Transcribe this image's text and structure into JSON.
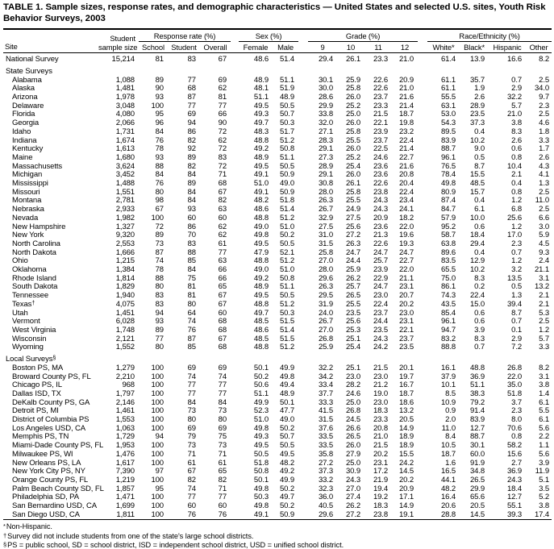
{
  "title": "TABLE 1. Sample sizes, response rates, and demographic characteristics — United States and selected U.S. sites, Youth Risk Behavior Surveys, 2003",
  "header": {
    "site": "Site",
    "sample_size": [
      "Student",
      "sample size"
    ],
    "groups": {
      "response": {
        "label": "Response rate (%)",
        "cols": [
          "School",
          "Student",
          "Overall"
        ]
      },
      "sex": {
        "label": "Sex (%)",
        "cols": [
          "Female",
          "Male"
        ]
      },
      "grade": {
        "label": "Grade (%)",
        "cols": [
          "9",
          "10",
          "11",
          "12"
        ]
      },
      "race": {
        "label": "Race/Ethnicity (%)",
        "cols": [
          "White*",
          "Black*",
          "Hispanic",
          "Other"
        ]
      }
    }
  },
  "rows": [
    {
      "type": "data",
      "label": "National Survey",
      "indent": false,
      "values": [
        "15,214",
        "81",
        "83",
        "67",
        "48.6",
        "51.4",
        "29.4",
        "26.1",
        "23.3",
        "21.0",
        "61.4",
        "13.9",
        "16.6",
        "8.2"
      ]
    },
    {
      "type": "section",
      "label": "State Surveys"
    },
    {
      "type": "data",
      "label": "Alabama",
      "indent": true,
      "values": [
        "1,088",
        "89",
        "77",
        "69",
        "48.9",
        "51.1",
        "30.1",
        "25.9",
        "22.6",
        "20.9",
        "61.1",
        "35.7",
        "0.7",
        "2.5"
      ]
    },
    {
      "type": "data",
      "label": "Alaska",
      "indent": true,
      "values": [
        "1,481",
        "90",
        "68",
        "62",
        "48.1",
        "51.9",
        "30.0",
        "25.8",
        "22.6",
        "21.0",
        "61.1",
        "1.9",
        "2.9",
        "34.0"
      ]
    },
    {
      "type": "data",
      "label": "Arizona",
      "indent": true,
      "values": [
        "1,978",
        "93",
        "87",
        "81",
        "51.1",
        "48.9",
        "28.6",
        "26.0",
        "23.7",
        "21.6",
        "55.5",
        "2.6",
        "32.2",
        "9.7"
      ]
    },
    {
      "type": "data",
      "label": "Delaware",
      "indent": true,
      "values": [
        "3,048",
        "100",
        "77",
        "77",
        "49.5",
        "50.5",
        "29.9",
        "25.2",
        "23.3",
        "21.4",
        "63.1",
        "28.9",
        "5.7",
        "2.3"
      ]
    },
    {
      "type": "data",
      "label": "Florida",
      "indent": true,
      "values": [
        "4,080",
        "95",
        "69",
        "66",
        "49.3",
        "50.7",
        "33.8",
        "25.0",
        "21.5",
        "18.7",
        "53.0",
        "23.5",
        "21.0",
        "2.5"
      ]
    },
    {
      "type": "data",
      "label": "Georgia",
      "indent": true,
      "values": [
        "2,066",
        "96",
        "94",
        "90",
        "49.7",
        "50.3",
        "32.0",
        "26.0",
        "22.1",
        "19.8",
        "54.3",
        "37.3",
        "3.8",
        "4.6"
      ]
    },
    {
      "type": "data",
      "label": "Idaho",
      "indent": true,
      "values": [
        "1,731",
        "84",
        "86",
        "72",
        "48.3",
        "51.7",
        "27.1",
        "25.8",
        "23.9",
        "23.2",
        "89.5",
        "0.4",
        "8.3",
        "1.8"
      ]
    },
    {
      "type": "data",
      "label": "Indiana",
      "indent": true,
      "values": [
        "1,674",
        "76",
        "82",
        "62",
        "48.8",
        "51.2",
        "28.3",
        "25.5",
        "23.7",
        "22.4",
        "83.9",
        "10.2",
        "2.6",
        "3.3"
      ]
    },
    {
      "type": "data",
      "label": "Kentucky",
      "indent": true,
      "values": [
        "1,613",
        "78",
        "92",
        "72",
        "49.2",
        "50.8",
        "29.1",
        "26.0",
        "22.5",
        "21.4",
        "88.7",
        "9.0",
        "0.6",
        "1.7"
      ]
    },
    {
      "type": "data",
      "label": "Maine",
      "indent": true,
      "values": [
        "1,680",
        "93",
        "89",
        "83",
        "48.9",
        "51.1",
        "27.3",
        "25.2",
        "24.6",
        "22.7",
        "96.1",
        "0.5",
        "0.8",
        "2.6"
      ]
    },
    {
      "type": "data",
      "label": "Massachusetts",
      "indent": true,
      "values": [
        "3,624",
        "88",
        "82",
        "72",
        "49.5",
        "50.5",
        "28.9",
        "25.4",
        "23.6",
        "21.6",
        "76.5",
        "8.7",
        "10.4",
        "4.3"
      ]
    },
    {
      "type": "data",
      "label": "Michigan",
      "indent": true,
      "values": [
        "3,452",
        "84",
        "84",
        "71",
        "49.1",
        "50.9",
        "29.1",
        "26.0",
        "23.6",
        "20.8",
        "78.4",
        "15.5",
        "2.1",
        "4.1"
      ]
    },
    {
      "type": "data",
      "label": "Mississippi",
      "indent": true,
      "values": [
        "1,488",
        "76",
        "89",
        "68",
        "51.0",
        "49.0",
        "30.8",
        "26.1",
        "22.6",
        "20.4",
        "49.8",
        "48.5",
        "0.4",
        "1.3"
      ]
    },
    {
      "type": "data",
      "label": "Missouri",
      "indent": true,
      "values": [
        "1,551",
        "80",
        "84",
        "67",
        "49.1",
        "50.9",
        "28.0",
        "25.8",
        "23.8",
        "22.4",
        "80.9",
        "15.7",
        "0.8",
        "2.5"
      ]
    },
    {
      "type": "data",
      "label": "Montana",
      "indent": true,
      "values": [
        "2,781",
        "98",
        "84",
        "82",
        "48.2",
        "51.8",
        "26.3",
        "25.5",
        "24.3",
        "23.4",
        "87.4",
        "0.4",
        "1.2",
        "11.0"
      ]
    },
    {
      "type": "data",
      "label": "Nebraska",
      "indent": true,
      "values": [
        "2,933",
        "67",
        "93",
        "63",
        "48.6",
        "51.4",
        "26.7",
        "24.9",
        "24.3",
        "24.1",
        "84.7",
        "6.1",
        "6.8",
        "2.5"
      ]
    },
    {
      "type": "data",
      "label": "Nevada",
      "indent": true,
      "values": [
        "1,982",
        "100",
        "60",
        "60",
        "48.8",
        "51.2",
        "32.9",
        "27.5",
        "20.9",
        "18.2",
        "57.9",
        "10.0",
        "25.6",
        "6.6"
      ]
    },
    {
      "type": "data",
      "label": "New Hampshire",
      "indent": true,
      "values": [
        "1,327",
        "72",
        "86",
        "62",
        "49.0",
        "51.0",
        "27.5",
        "25.6",
        "23.6",
        "22.0",
        "95.2",
        "0.6",
        "1.2",
        "3.0"
      ]
    },
    {
      "type": "data",
      "label": "New York",
      "indent": true,
      "values": [
        "9,320",
        "89",
        "70",
        "62",
        "49.8",
        "50.2",
        "31.0",
        "27.2",
        "21.3",
        "19.6",
        "58.7",
        "18.4",
        "17.0",
        "5.9"
      ]
    },
    {
      "type": "data",
      "label": "North Carolina",
      "indent": true,
      "values": [
        "2,553",
        "73",
        "83",
        "61",
        "49.5",
        "50.5",
        "31.5",
        "26.3",
        "22.6",
        "19.3",
        "63.8",
        "29.4",
        "2.3",
        "4.5"
      ]
    },
    {
      "type": "data",
      "label": "North Dakota",
      "indent": true,
      "values": [
        "1,666",
        "87",
        "88",
        "77",
        "47.9",
        "52.1",
        "25.8",
        "24.7",
        "24.7",
        "24.7",
        "89.6",
        "0.4",
        "0.7",
        "9.3"
      ]
    },
    {
      "type": "data",
      "label": "Ohio",
      "indent": true,
      "values": [
        "1,215",
        "74",
        "85",
        "63",
        "48.8",
        "51.2",
        "27.0",
        "24.4",
        "25.7",
        "22.7",
        "83.5",
        "12.9",
        "1.2",
        "2.4"
      ]
    },
    {
      "type": "data",
      "label": "Oklahoma",
      "indent": true,
      "values": [
        "1,384",
        "78",
        "84",
        "66",
        "49.0",
        "51.0",
        "28.0",
        "25.9",
        "23.9",
        "22.0",
        "65.5",
        "10.2",
        "3.2",
        "21.1"
      ]
    },
    {
      "type": "data",
      "label": "Rhode Island",
      "indent": true,
      "values": [
        "1,814",
        "88",
        "75",
        "66",
        "49.2",
        "50.8",
        "29.6",
        "26.2",
        "22.9",
        "21.1",
        "75.0",
        "8.3",
        "13.5",
        "3.1"
      ]
    },
    {
      "type": "data",
      "label": "South Dakota",
      "indent": true,
      "values": [
        "1,829",
        "80",
        "81",
        "65",
        "48.9",
        "51.1",
        "26.3",
        "25.7",
        "24.7",
        "23.1",
        "86.1",
        "0.2",
        "0.5",
        "13.2"
      ]
    },
    {
      "type": "data",
      "label": "Tennessee",
      "indent": true,
      "values": [
        "1,940",
        "83",
        "81",
        "67",
        "49.5",
        "50.5",
        "29.5",
        "26.5",
        "23.0",
        "20.7",
        "74.3",
        "22.4",
        "1.3",
        "2.1"
      ]
    },
    {
      "type": "data",
      "label": "Texas†",
      "indent": true,
      "values": [
        "4,075",
        "83",
        "80",
        "67",
        "48.8",
        "51.2",
        "31.9",
        "25.5",
        "22.4",
        "20.2",
        "43.5",
        "15.0",
        "39.4",
        "2.1"
      ]
    },
    {
      "type": "data",
      "label": "Utah",
      "indent": true,
      "values": [
        "1,451",
        "94",
        "64",
        "60",
        "49.7",
        "50.3",
        "24.0",
        "23.5",
        "23.7",
        "23.0",
        "85.4",
        "0.6",
        "8.7",
        "5.3"
      ]
    },
    {
      "type": "data",
      "label": "Vermont",
      "indent": true,
      "values": [
        "6,028",
        "93",
        "74",
        "68",
        "48.5",
        "51.5",
        "26.7",
        "25.6",
        "24.4",
        "23.1",
        "96.1",
        "0.6",
        "0.7",
        "2.5"
      ]
    },
    {
      "type": "data",
      "label": "West Virginia",
      "indent": true,
      "values": [
        "1,748",
        "89",
        "76",
        "68",
        "48.6",
        "51.4",
        "27.0",
        "25.3",
        "23.5",
        "22.1",
        "94.7",
        "3.9",
        "0.1",
        "1.2"
      ]
    },
    {
      "type": "data",
      "label": "Wisconsin",
      "indent": true,
      "values": [
        "2,121",
        "77",
        "87",
        "67",
        "48.5",
        "51.5",
        "26.8",
        "25.1",
        "24.3",
        "23.7",
        "83.2",
        "8.3",
        "2.9",
        "5.7"
      ]
    },
    {
      "type": "data",
      "label": "Wyoming",
      "indent": true,
      "values": [
        "1,552",
        "80",
        "85",
        "68",
        "48.8",
        "51.2",
        "25.9",
        "25.4",
        "24.2",
        "23.5",
        "88.8",
        "0.7",
        "7.2",
        "3.3"
      ]
    },
    {
      "type": "section",
      "label": "Local Surveys§"
    },
    {
      "type": "data",
      "label": "Boston PS, MA",
      "indent": true,
      "values": [
        "1,279",
        "100",
        "69",
        "69",
        "50.1",
        "49.9",
        "32.2",
        "25.1",
        "21.5",
        "20.1",
        "16.1",
        "48.8",
        "26.8",
        "8.2"
      ]
    },
    {
      "type": "data",
      "label": "Broward County PS, FL",
      "indent": true,
      "values": [
        "2,210",
        "100",
        "74",
        "74",
        "50.2",
        "49.8",
        "34.2",
        "23.0",
        "23.0",
        "19.7",
        "37.9",
        "36.9",
        "22.0",
        "3.1"
      ]
    },
    {
      "type": "data",
      "label": "Chicago PS, IL",
      "indent": true,
      "values": [
        "968",
        "100",
        "77",
        "77",
        "50.6",
        "49.4",
        "33.4",
        "28.2",
        "21.2",
        "16.7",
        "10.1",
        "51.1",
        "35.0",
        "3.8"
      ]
    },
    {
      "type": "data",
      "label": "Dallas ISD, TX",
      "indent": true,
      "values": [
        "1,797",
        "100",
        "77",
        "77",
        "51.1",
        "48.9",
        "37.7",
        "24.6",
        "19.0",
        "18.7",
        "8.5",
        "38.3",
        "51.8",
        "1.4"
      ]
    },
    {
      "type": "data",
      "label": "DeKalb County PS, GA",
      "indent": true,
      "values": [
        "2,146",
        "100",
        "84",
        "84",
        "49.9",
        "50.1",
        "33.3",
        "25.0",
        "23.0",
        "18.6",
        "10.9",
        "79.2",
        "3.7",
        "6.1"
      ]
    },
    {
      "type": "data",
      "label": "Detroit PS, MI",
      "indent": true,
      "values": [
        "1,461",
        "100",
        "73",
        "73",
        "52.3",
        "47.7",
        "41.5",
        "26.8",
        "18.3",
        "13.2",
        "0.9",
        "91.4",
        "2.3",
        "5.5"
      ]
    },
    {
      "type": "data",
      "label": "District of Columbia PS",
      "indent": true,
      "values": [
        "1,553",
        "100",
        "80",
        "80",
        "51.0",
        "49.0",
        "31.5",
        "24.5",
        "23.3",
        "20.5",
        "2.0",
        "83.9",
        "8.0",
        "6.1"
      ]
    },
    {
      "type": "data",
      "label": "Los Angeles USD, CA",
      "indent": true,
      "values": [
        "1,063",
        "100",
        "69",
        "69",
        "49.8",
        "50.2",
        "37.6",
        "26.6",
        "20.8",
        "14.9",
        "11.0",
        "12.7",
        "70.6",
        "5.6"
      ]
    },
    {
      "type": "data",
      "label": "Memphis PS, TN",
      "indent": true,
      "values": [
        "1,729",
        "94",
        "79",
        "75",
        "49.3",
        "50.7",
        "33.5",
        "26.5",
        "21.0",
        "18.9",
        "8.4",
        "88.7",
        "0.8",
        "2.2"
      ]
    },
    {
      "type": "data",
      "label": "Miami-Dade County PS, FL",
      "indent": true,
      "values": [
        "1,953",
        "100",
        "73",
        "73",
        "49.5",
        "50.5",
        "33.5",
        "26.0",
        "21.5",
        "18.9",
        "10.5",
        "30.1",
        "58.2",
        "1.1"
      ]
    },
    {
      "type": "data",
      "label": "Milwaukee PS, WI",
      "indent": true,
      "values": [
        "1,476",
        "100",
        "71",
        "71",
        "50.5",
        "49.5",
        "35.8",
        "27.9",
        "20.2",
        "15.5",
        "18.7",
        "60.0",
        "15.6",
        "5.6"
      ]
    },
    {
      "type": "data",
      "label": "New Orleans PS, LA",
      "indent": true,
      "values": [
        "1,617",
        "100",
        "61",
        "61",
        "51.8",
        "48.2",
        "27.2",
        "25.0",
        "23.1",
        "24.2",
        "1.6",
        "91.9",
        "2.7",
        "3.9"
      ]
    },
    {
      "type": "data",
      "label": "New York City PS, NY",
      "indent": true,
      "values": [
        "7,390",
        "97",
        "67",
        "65",
        "50.8",
        "49.2",
        "37.3",
        "30.9",
        "17.2",
        "14.5",
        "16.5",
        "34.8",
        "36.9",
        "11.9"
      ]
    },
    {
      "type": "data",
      "label": "Orange County PS, FL",
      "indent": true,
      "values": [
        "1,219",
        "100",
        "82",
        "82",
        "50.1",
        "49.9",
        "33.2",
        "24.3",
        "21.9",
        "20.2",
        "44.1",
        "26.5",
        "24.3",
        "5.1"
      ]
    },
    {
      "type": "data",
      "label": "Palm Beach County SD, FL",
      "indent": true,
      "values": [
        "1,857",
        "95",
        "74",
        "71",
        "49.8",
        "50.2",
        "32.3",
        "27.0",
        "19.4",
        "20.9",
        "48.2",
        "29.9",
        "18.4",
        "3.5"
      ]
    },
    {
      "type": "data",
      "label": "Philadelphia SD, PA",
      "indent": true,
      "values": [
        "1,471",
        "100",
        "77",
        "77",
        "50.3",
        "49.7",
        "36.0",
        "27.4",
        "19.2",
        "17.1",
        "16.4",
        "65.6",
        "12.7",
        "5.2"
      ]
    },
    {
      "type": "data",
      "label": "San Bernardino USD, CA",
      "indent": true,
      "values": [
        "1,699",
        "100",
        "60",
        "60",
        "49.8",
        "50.2",
        "40.5",
        "26.2",
        "18.3",
        "14.9",
        "20.6",
        "20.5",
        "55.1",
        "3.8"
      ]
    },
    {
      "type": "data",
      "label": "San Diego USD, CA",
      "indent": true,
      "values": [
        "1,811",
        "100",
        "76",
        "76",
        "49.1",
        "50.9",
        "29.6",
        "27.2",
        "23.8",
        "19.1",
        "28.8",
        "14.5",
        "39.3",
        "17.4"
      ]
    }
  ],
  "footnotes": [
    {
      "symbol": "*",
      "text": "Non-Hispanic."
    },
    {
      "symbol": "†",
      "text": "Survey did not include students from one of the state's large school districts."
    },
    {
      "symbol": "§",
      "text": "PS = public school, SD = school district, ISD = independent school district, USD = unified school district."
    }
  ]
}
